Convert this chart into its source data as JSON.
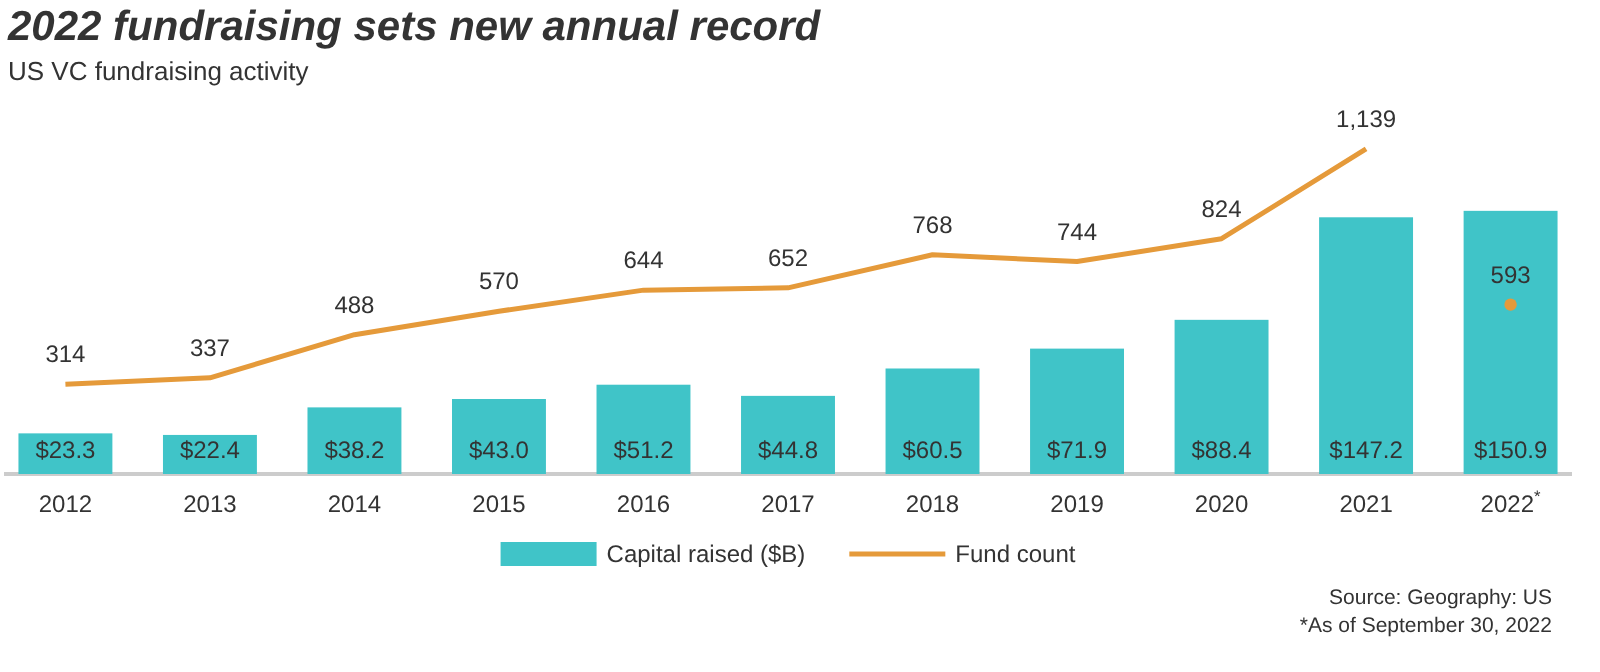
{
  "chart_data": {
    "type": "bar",
    "title": "2022 fundraising sets new annual record",
    "subtitle": "US VC fundraising activity",
    "categories": [
      "2012",
      "2013",
      "2014",
      "2015",
      "2016",
      "2017",
      "2018",
      "2019",
      "2020",
      "2021",
      "2022$^{*}$"
    ],
    "series": [
      {
        "name": "Capital raised ($B)",
        "color": "#40c4c8",
        "values": [
          23.3,
          22.4,
          38.2,
          43.0,
          51.2,
          44.8,
          60.5,
          71.9,
          88.4,
          147.2,
          150.9
        ],
        "value_labels": [
          "$23.3",
          "$22.4",
          "$38.2",
          "$43.0",
          "$51.2",
          "$44.8",
          "$60.5",
          "$71.9",
          "$88.4",
          "$147.2",
          "$150.9"
        ]
      },
      {
        "name": "Fund count",
        "type": "line",
        "axis": "y2",
        "color": "#e59a3a",
        "values": [
          314,
          337,
          488,
          570,
          644,
          652,
          768,
          744,
          824,
          1139,
          null
        ],
        "value_labels": [
          "314",
          "337",
          "488",
          "570",
          "644",
          "652",
          "768",
          "744",
          "824",
          "1,139",
          null
        ]
      },
      {
        "type": "scatter",
        "axis": "y2",
        "color": "#e59a3a",
        "values": [
          null,
          null,
          null,
          null,
          null,
          null,
          null,
          null,
          null,
          null,
          593
        ],
        "value_labels": [
          null,
          null,
          null,
          null,
          null,
          null,
          null,
          null,
          null,
          null,
          "593"
        ]
      }
    ],
    "tick_labels": "x",
    "grid": false,
    "legend": "bottom",
    "annotations": [
      "Source: Geography: US",
      "*As of September 30, 2022"
    ]
  }
}
